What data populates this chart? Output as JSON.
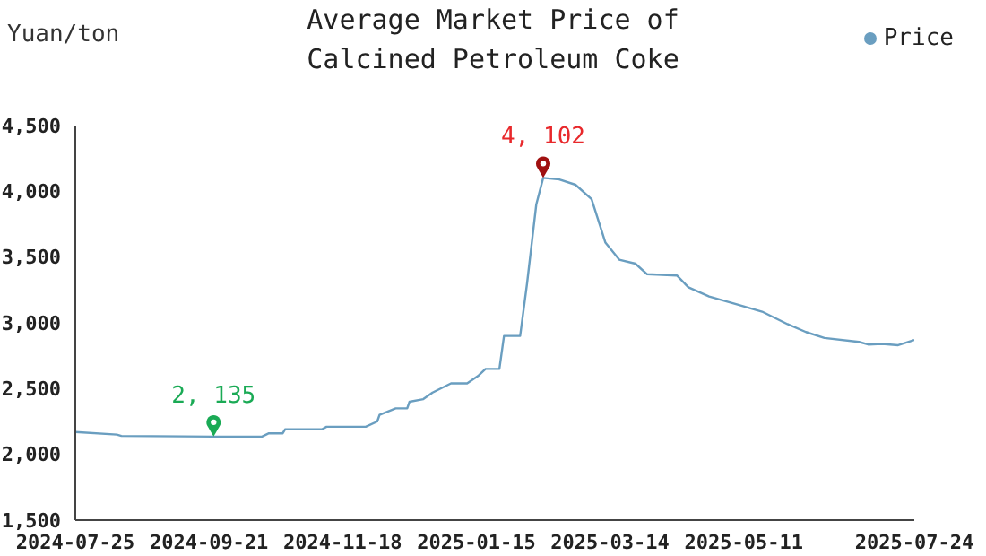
{
  "chart_data": {
    "type": "line",
    "title": "Average Market Price of Calcined Petroleum Coke",
    "ylabel": "Yuan/ton",
    "x": [
      "2024-07-25",
      "2024-08-12",
      "2024-08-14",
      "2024-09-23",
      "2024-10-14",
      "2024-10-17",
      "2024-10-23",
      "2024-10-24",
      "2024-11-09",
      "2024-11-11",
      "2024-11-28",
      "2024-12-03",
      "2024-12-04",
      "2024-12-11",
      "2024-12-16",
      "2024-12-17",
      "2024-12-23",
      "2024-12-27",
      "2025-01-04",
      "2025-01-11",
      "2025-01-16",
      "2025-01-19",
      "2025-01-25",
      "2025-01-27",
      "2025-02-03",
      "2025-02-06",
      "2025-02-10",
      "2025-02-13",
      "2025-02-20",
      "2025-02-27",
      "2025-03-06",
      "2025-03-12",
      "2025-03-18",
      "2025-03-25",
      "2025-03-30",
      "2025-04-12",
      "2025-04-17",
      "2025-04-26",
      "2025-05-08",
      "2025-05-19",
      "2025-05-30",
      "2025-06-07",
      "2025-06-15",
      "2025-06-30",
      "2025-07-04",
      "2025-07-10",
      "2025-07-17",
      "2025-07-24"
    ],
    "series": [
      {
        "name": "Price",
        "color": "#6a9ec0",
        "values": [
          2170,
          2150,
          2140,
          2135,
          2135,
          2160,
          2160,
          2190,
          2190,
          2210,
          2210,
          2250,
          2300,
          2350,
          2350,
          2400,
          2420,
          2470,
          2540,
          2540,
          2600,
          2650,
          2650,
          2900,
          2900,
          3300,
          3900,
          4102,
          4090,
          4050,
          3940,
          3610,
          3480,
          3450,
          3370,
          3360,
          3270,
          3200,
          3140,
          3085,
          2990,
          2930,
          2885,
          2855,
          2835,
          2840,
          2830,
          2870
        ]
      }
    ],
    "xlim": [
      "2024-07-25",
      "2025-07-24"
    ],
    "xticks": [
      "2024-07-25",
      "2024-09-21",
      "2024-11-18",
      "2025-01-15",
      "2025-03-14",
      "2025-05-11",
      "2025-07-24"
    ],
    "ylim": [
      1500,
      4500
    ],
    "yticks": [
      {
        "value": 1500,
        "label": "1,500"
      },
      {
        "value": 2000,
        "label": "2,000"
      },
      {
        "value": 2500,
        "label": "2,500"
      },
      {
        "value": 3000,
        "label": "3,000"
      },
      {
        "value": 3500,
        "label": "3,500"
      },
      {
        "value": 4000,
        "label": "4,000"
      },
      {
        "value": 4500,
        "label": "4,500"
      }
    ],
    "annotations": [
      {
        "text": "2, 135",
        "x": "2024-09-23",
        "y": 2135
      },
      {
        "text": "4, 102",
        "x": "2025-02-13",
        "y": 4102
      }
    ],
    "grid": false,
    "legend": "top right",
    "marker": "none",
    "line_style": "solid"
  }
}
